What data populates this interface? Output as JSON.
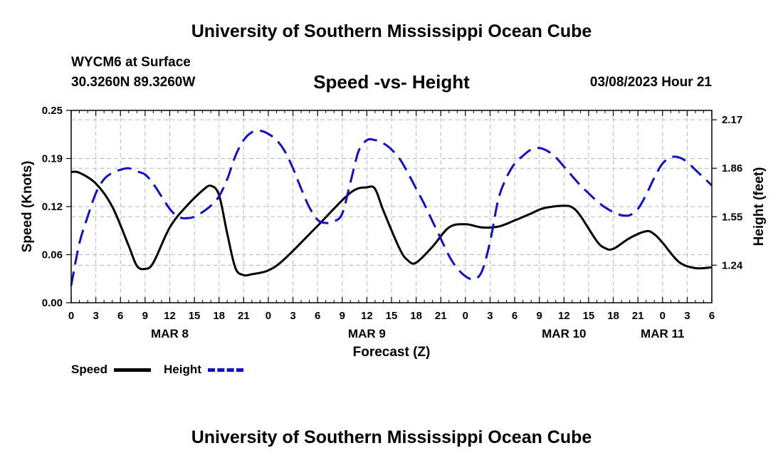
{
  "header": {
    "title": "University of Southern Mississippi Ocean Cube",
    "station": "WYCM6 at Surface",
    "coords": "30.3260N  89.3260W",
    "subtitle": "Speed -vs- Height",
    "datetime": "03/08/2023 Hour 21"
  },
  "footer": {
    "title": "University of Southern Mississippi Ocean Cube"
  },
  "legend": {
    "speed_label": "Speed",
    "height_label": "Height"
  },
  "chart_data": {
    "type": "line",
    "title": "Speed -vs- Height",
    "xlabel": "Forecast (Z)",
    "ylabel_left": "Speed (Knots)",
    "ylabel_right": "Height (feet)",
    "x_unit": "hours from 03/08 00Z",
    "xlim": [
      0,
      78
    ],
    "ylim_left": [
      0,
      0.25
    ],
    "ylim_right": [
      1.0,
      2.23
    ],
    "left_ticks": [
      {
        "value": 0,
        "label": "0.00"
      },
      {
        "value": 0.0625,
        "label": "0.06"
      },
      {
        "value": 0.125,
        "label": "0.12"
      },
      {
        "value": 0.1875,
        "label": "0.19"
      },
      {
        "value": 0.25,
        "label": "0.25"
      }
    ],
    "right_ticks": [
      {
        "value": 1.24,
        "label": "1.24"
      },
      {
        "value": 1.55,
        "label": "1.55"
      },
      {
        "value": 1.86,
        "label": "1.86"
      },
      {
        "value": 2.17,
        "label": "2.17"
      }
    ],
    "x_ticks": [
      {
        "value": 0,
        "label": "0"
      },
      {
        "value": 3,
        "label": "3"
      },
      {
        "value": 6,
        "label": "6"
      },
      {
        "value": 9,
        "label": "9"
      },
      {
        "value": 12,
        "label": "12"
      },
      {
        "value": 15,
        "label": "15"
      },
      {
        "value": 18,
        "label": "18"
      },
      {
        "value": 21,
        "label": "21"
      },
      {
        "value": 24,
        "label": "0"
      },
      {
        "value": 27,
        "label": "3"
      },
      {
        "value": 30,
        "label": "6"
      },
      {
        "value": 33,
        "label": "9"
      },
      {
        "value": 36,
        "label": "12"
      },
      {
        "value": 39,
        "label": "15"
      },
      {
        "value": 42,
        "label": "18"
      },
      {
        "value": 45,
        "label": "21"
      },
      {
        "value": 48,
        "label": "0"
      },
      {
        "value": 51,
        "label": "3"
      },
      {
        "value": 54,
        "label": "6"
      },
      {
        "value": 57,
        "label": "9"
      },
      {
        "value": 60,
        "label": "12"
      },
      {
        "value": 63,
        "label": "15"
      },
      {
        "value": 66,
        "label": "18"
      },
      {
        "value": 69,
        "label": "21"
      },
      {
        "value": 72,
        "label": "0"
      },
      {
        "value": 75,
        "label": "3"
      },
      {
        "value": 78,
        "label": "6"
      }
    ],
    "date_labels": [
      {
        "x": 12,
        "label": "MAR 8"
      },
      {
        "x": 36,
        "label": "MAR 9"
      },
      {
        "x": 60,
        "label": "MAR 10"
      },
      {
        "x": 72,
        "label": "MAR 11"
      }
    ],
    "series": [
      {
        "name": "Speed",
        "axis": "left",
        "color": "#000000",
        "dash": "solid",
        "x": [
          0,
          1,
          3,
          5,
          7,
          8,
          9,
          10,
          12,
          14,
          16,
          17,
          18,
          19,
          20,
          21,
          22,
          24,
          26,
          30,
          34,
          36,
          37,
          38,
          40,
          41,
          42,
          44,
          46,
          48,
          50,
          52,
          54,
          56,
          57,
          58,
          60,
          61,
          62,
          64,
          65,
          66,
          68,
          70,
          71,
          72,
          74,
          76,
          78
        ],
        "y": [
          0.17,
          0.169,
          0.155,
          0.125,
          0.074,
          0.048,
          0.044,
          0.052,
          0.098,
          0.125,
          0.146,
          0.152,
          0.14,
          0.09,
          0.045,
          0.036,
          0.037,
          0.042,
          0.057,
          0.1,
          0.143,
          0.15,
          0.148,
          0.12,
          0.07,
          0.055,
          0.052,
          0.073,
          0.098,
          0.102,
          0.098,
          0.099,
          0.107,
          0.116,
          0.121,
          0.124,
          0.126,
          0.124,
          0.113,
          0.08,
          0.071,
          0.07,
          0.084,
          0.093,
          0.089,
          0.078,
          0.053,
          0.045,
          0.046
        ]
      },
      {
        "name": "Height",
        "axis": "right",
        "color": "#1010c8",
        "dash": "dashed",
        "x": [
          0,
          1,
          2,
          3,
          4,
          5,
          6,
          7,
          8,
          9,
          10,
          11,
          12,
          13,
          14,
          15,
          16,
          17,
          18,
          19,
          20,
          21,
          22,
          23,
          24,
          25,
          26,
          27,
          28,
          29,
          30,
          31,
          32,
          33,
          34,
          35,
          36,
          37,
          38,
          39,
          40,
          41,
          42,
          43,
          44,
          45,
          46,
          47,
          48,
          49,
          50,
          51,
          52,
          53,
          54,
          55,
          56,
          57,
          58,
          59,
          60,
          61,
          62,
          63,
          64,
          65,
          66,
          67,
          68,
          69,
          70,
          71,
          72,
          73,
          74,
          75,
          76,
          77,
          78
        ],
        "y": [
          1.11,
          1.38,
          1.55,
          1.7,
          1.79,
          1.83,
          1.85,
          1.86,
          1.84,
          1.82,
          1.76,
          1.68,
          1.6,
          1.55,
          1.54,
          1.55,
          1.58,
          1.62,
          1.68,
          1.79,
          1.94,
          2.04,
          2.09,
          2.1,
          2.08,
          2.04,
          1.97,
          1.86,
          1.73,
          1.61,
          1.53,
          1.51,
          1.52,
          1.57,
          1.77,
          1.97,
          2.04,
          2.04,
          2.02,
          1.98,
          1.92,
          1.83,
          1.73,
          1.63,
          1.52,
          1.41,
          1.3,
          1.22,
          1.17,
          1.15,
          1.2,
          1.39,
          1.66,
          1.8,
          1.89,
          1.94,
          1.98,
          1.99,
          1.97,
          1.93,
          1.87,
          1.81,
          1.75,
          1.7,
          1.65,
          1.61,
          1.58,
          1.56,
          1.56,
          1.6,
          1.69,
          1.8,
          1.89,
          1.93,
          1.93,
          1.9,
          1.85,
          1.8,
          1.75
        ]
      }
    ]
  }
}
